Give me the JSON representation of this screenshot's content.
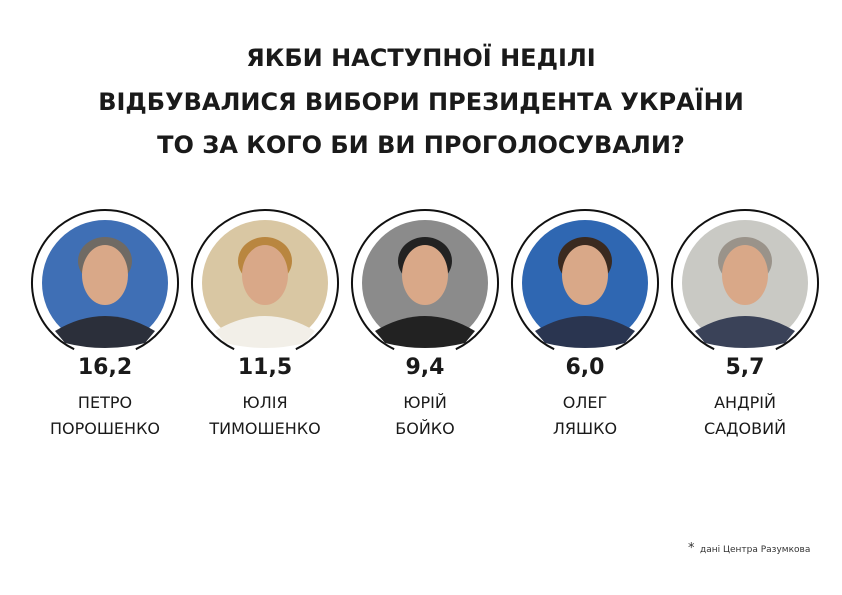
{
  "title": [
    "ЯКБИ НАСТУПНОЇ НЕДІЛІ",
    "ВІДБУВАЛИСЯ ВИБОРИ ПРЕЗИДЕНТА УКРАЇНИ",
    "ТО ЗА КОГО БИ ВИ ПРОГОЛОСУВАЛИ?"
  ],
  "candidates": [
    {
      "value": "16,2",
      "first_name": "ПЕТРО",
      "last_name": "ПОРОШЕНКО"
    },
    {
      "value": "11,5",
      "first_name": "ЮЛІЯ",
      "last_name": "ТИМОШЕНКО"
    },
    {
      "value": "9,4",
      "first_name": "ЮРІЙ",
      "last_name": "БОЙКО"
    },
    {
      "value": "6,0",
      "first_name": "ОЛЕГ",
      "last_name": "ЛЯШКО"
    },
    {
      "value": "5,7",
      "first_name": "АНДРІЙ",
      "last_name": "САДОВИЙ"
    }
  ],
  "footnote": {
    "mark": "*",
    "text": "дані Центра Разумкова"
  }
}
